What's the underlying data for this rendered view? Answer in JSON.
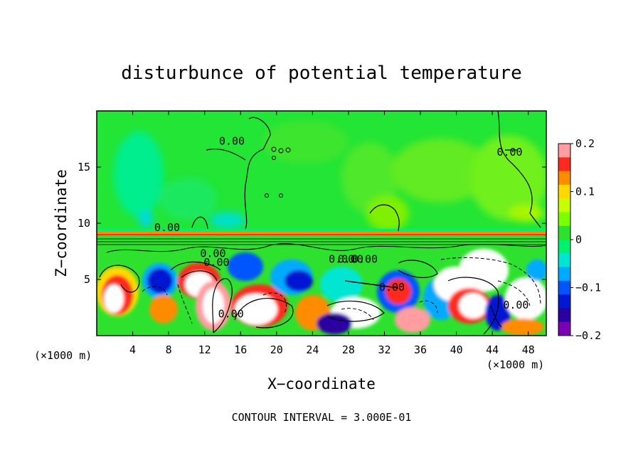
{
  "chart_data": {
    "type": "heatmap",
    "title": "disturbunce of potential temperature",
    "xlabel": "X−coordinate",
    "ylabel": "Z−coordinate",
    "x_unit_left": "(×1000 m)",
    "x_unit_right": "(×1000 m)",
    "xlim": [
      0,
      50
    ],
    "ylim": [
      0,
      20
    ],
    "x_ticks": [
      4,
      8,
      12,
      16,
      20,
      24,
      28,
      32,
      36,
      40,
      44,
      48
    ],
    "y_ticks": [
      5,
      10,
      15
    ],
    "colorbar": {
      "range": [
        -0.2,
        0.2
      ],
      "tick_values": [
        0.2,
        0.1,
        0,
        -0.1,
        -0.2
      ],
      "tick_labels": [
        "0.2",
        "0.1",
        "0",
        "−0.1",
        "−0.2"
      ],
      "colors": [
        "#ff9da0",
        "#ff2a1e",
        "#ff8c00",
        "#ffd900",
        "#c6ff00",
        "#7cff00",
        "#2fe12f",
        "#00f070",
        "#00e6d2",
        "#00aaff",
        "#0055ff",
        "#0018d2",
        "#2a00a0",
        "#7a00b4"
      ]
    },
    "contour_interval": "CONTOUR INTERVAL = 3.000E-01",
    "contour_labels": [
      {
        "text": "0.00",
        "x": 13.6,
        "y": 17.0
      },
      {
        "text": "0.00",
        "x": 6.4,
        "y": 9.3
      },
      {
        "text": "0.00",
        "x": 11.5,
        "y": 7.0
      },
      {
        "text": "0.00",
        "x": 11.9,
        "y": 6.2
      },
      {
        "text": "0.00",
        "x": 25.8,
        "y": 6.5
      },
      {
        "text": "0.00",
        "x": 26.8,
        "y": 6.5
      },
      {
        "text": "0.00",
        "x": 28.4,
        "y": 6.5
      },
      {
        "text": "0.00",
        "x": 31.4,
        "y": 4.0
      },
      {
        "text": "0.00",
        "x": 44.5,
        "y": 16.0
      },
      {
        "text": "0.00",
        "x": 13.5,
        "y": 1.6
      },
      {
        "text": "0.00",
        "x": 45.2,
        "y": 2.4
      }
    ],
    "field_description": "Upper layer (z > 9.3 km) near-zero disturbance (green) with faint cyan/lime plumes; strong stable interface near z ≈ 9 km with dense contours; lower layer (z < 9 km) shows turbulent vortical structures with values from −0.2 to 0.2."
  }
}
